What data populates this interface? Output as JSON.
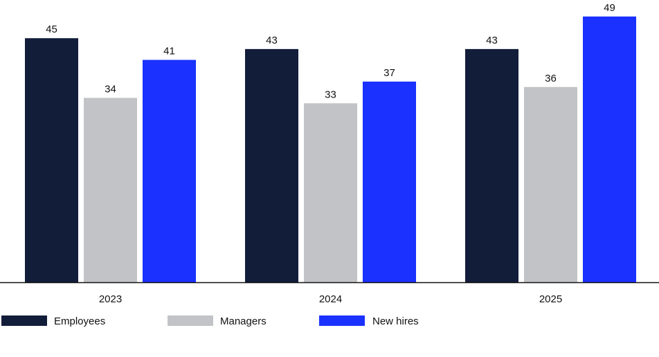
{
  "chart_data": {
    "type": "bar",
    "title": "",
    "xlabel": "",
    "ylabel": "",
    "categories": [
      "2023",
      "2024",
      "2025"
    ],
    "series": [
      {
        "name": "Employees",
        "color": "#121d3a",
        "values": [
          45,
          43,
          43
        ]
      },
      {
        "name": "Managers",
        "color": "#c1c3c7",
        "values": [
          34,
          33,
          36
        ]
      },
      {
        "name": "New hires",
        "color": "#1a31ff",
        "values": [
          41,
          37,
          49
        ]
      }
    ],
    "ylim": [
      0,
      50
    ],
    "grid": false,
    "data_labels": true,
    "legend_position": "bottom-left"
  }
}
